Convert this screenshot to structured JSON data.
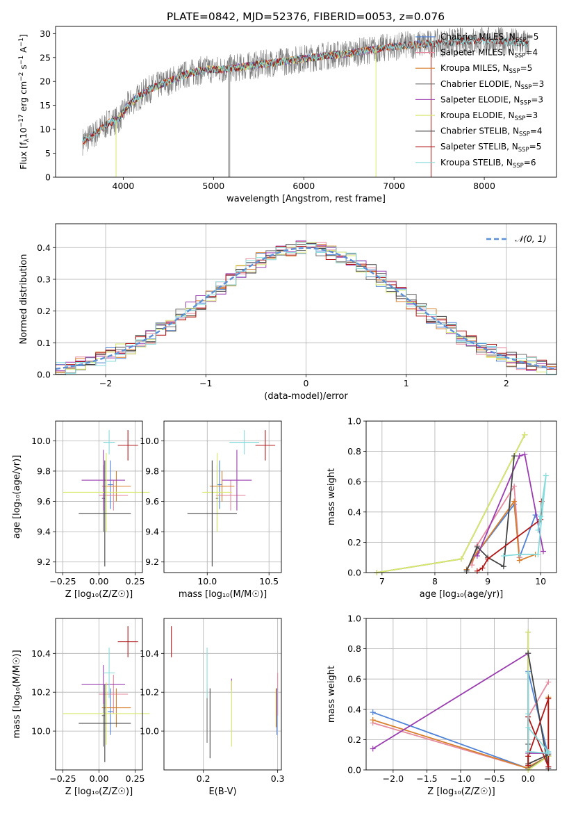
{
  "figure_title": "PLATE=0842, MJD=52376, FIBERID=0053, z=0.076",
  "colors": {
    "Chabrier MILES": "#4e82d8",
    "Salpeter MILES": "#e68a9e",
    "Kroupa MILES": "#d87f2c",
    "Chabrier ELODIE": "#6f6f6f",
    "Salpeter ELODIE": "#9a3cb0",
    "Kroupa ELODIE": "#d8e86a",
    "Chabrier STELIB": "#444444",
    "Salpeter STELIB": "#b01818",
    "Kroupa STELIB": "#86dcdc",
    "data": "#7a7a7a",
    "normal": "#5b8fd6"
  },
  "chart_data": [
    {
      "id": "spectrum",
      "type": "line",
      "title": "PLATE=0842, MJD=52376, FIBERID=0053, z=0.076",
      "xlabel": "wavelength [Angstrom, rest frame]",
      "ylabel_parts": [
        "Flux [f",
        "λ",
        "10",
        "−17",
        " erg cm",
        "−2",
        " s",
        "−1",
        " A",
        "−1",
        "]"
      ],
      "xlim": [
        3250,
        8800
      ],
      "ylim": [
        0,
        31.5
      ],
      "xticks": [
        4000,
        5000,
        6000,
        7000,
        8000
      ],
      "yticks": [
        0,
        5,
        10,
        15,
        20,
        25,
        30
      ],
      "grid": false,
      "legend_position": "right",
      "legend": [
        {
          "label": "Chabrier MILES, N",
          "sub": "SSP",
          "tail": "=5"
        },
        {
          "label": "Salpeter MILES, N",
          "sub": "SSP",
          "tail": "=4"
        },
        {
          "label": "Kroupa MILES, N",
          "sub": "SSP",
          "tail": "=5"
        },
        {
          "label": "Chabrier ELODIE, N",
          "sub": "SSP",
          "tail": "=3"
        },
        {
          "label": "Salpeter ELODIE, N",
          "sub": "SSP",
          "tail": "=3"
        },
        {
          "label": "Kroupa ELODIE, N",
          "sub": "SSP",
          "tail": "=3"
        },
        {
          "label": "Chabrier STELIB, N",
          "sub": "SSP",
          "tail": "=4"
        },
        {
          "label": "Salpeter STELIB, N",
          "sub": "SSP",
          "tail": "=5"
        },
        {
          "label": "Kroupa STELIB, N",
          "sub": "SSP",
          "tail": "=6"
        }
      ],
      "continuum": {
        "x": [
          3550,
          3650,
          3750,
          3850,
          3950,
          4050,
          4150,
          4300,
          4500,
          4700,
          4900,
          5100,
          5300,
          5500,
          5700,
          5900,
          6100,
          6300,
          6500,
          6700,
          6900,
          7100,
          7300,
          7500,
          7700,
          7900,
          8100,
          8300,
          8500
        ],
        "y": [
          7.5,
          8.5,
          10.0,
          11.5,
          12.0,
          15.0,
          16.5,
          18.5,
          20.0,
          21.5,
          22.5,
          22.5,
          23.0,
          23.5,
          24.0,
          24.5,
          25.0,
          25.5,
          25.8,
          26.5,
          27.0,
          27.5,
          27.8,
          28.0,
          28.3,
          28.5,
          28.5,
          28.3,
          28.0
        ]
      },
      "model_ranges": {
        "MILES": [
          3550,
          7410
        ],
        "ELODIE": [
          3900,
          6800
        ],
        "STELIB": [
          3550,
          8500
        ]
      }
    },
    {
      "id": "residuals",
      "type": "histogram",
      "xlabel": "(data-model)/error",
      "ylabel": "Normed distribution",
      "xlim": [
        -2.5,
        2.5
      ],
      "ylim": [
        0,
        0.475
      ],
      "xticks": [
        -2,
        -1,
        0,
        1,
        2
      ],
      "yticks": [
        0.0,
        0.1,
        0.2,
        0.3,
        0.4
      ],
      "grid": true,
      "legend": {
        "label": "𝒩(0, 1)",
        "position": "top-right"
      },
      "bin_width": 0.1
    },
    {
      "id": "age_vs_Z",
      "type": "errorbar",
      "xlabel": "Z [log₁₀(Z/Z☉)]",
      "ylabel": "age  [log₁₀(age/yr)]",
      "xlim": [
        -0.3,
        0.3
      ],
      "ylim": [
        9.13,
        10.13
      ],
      "xticks": [
        -0.25,
        0.0,
        0.25
      ],
      "xticklabels": [
        "−0.25",
        "0.00",
        "0.25"
      ],
      "yticks": [
        9.2,
        9.4,
        9.6,
        9.8,
        10.0
      ],
      "grid": true,
      "points": [
        {
          "model": "Chabrier MILES",
          "x": 0.08,
          "xerr": 0.02,
          "y": 9.71,
          "yerr": 0.16
        },
        {
          "model": "Salpeter MILES",
          "x": 0.1,
          "xerr": 0.1,
          "y": 9.64,
          "yerr": 0.1
        },
        {
          "model": "Kroupa MILES",
          "x": 0.12,
          "xerr": 0.1,
          "y": 9.7,
          "yerr": 0.1
        },
        {
          "model": "Chabrier ELODIE",
          "x": 0.03,
          "xerr": 0.01,
          "y": 9.62,
          "yerr": 0.22
        },
        {
          "model": "Salpeter ELODIE",
          "x": 0.03,
          "xerr": 0.15,
          "y": 9.74,
          "yerr": 0.2
        },
        {
          "model": "Kroupa ELODIE",
          "x": 0.05,
          "xerr": 0.3,
          "y": 9.66,
          "yerr": 0.26
        },
        {
          "model": "Chabrier STELIB",
          "x": 0.04,
          "xerr": 0.18,
          "y": 9.52,
          "yerr": 0.35
        },
        {
          "model": "Salpeter STELIB",
          "x": 0.2,
          "xerr": 0.07,
          "y": 9.97,
          "yerr": 0.1
        },
        {
          "model": "Kroupa STELIB",
          "x": 0.07,
          "xerr": 0.04,
          "y": 9.99,
          "yerr": 0.08
        }
      ]
    },
    {
      "id": "age_vs_mass",
      "type": "errorbar",
      "xlabel": "mass [log₁₀(M/M☉)]",
      "xlim": [
        9.65,
        10.6
      ],
      "ylim": [
        9.13,
        10.13
      ],
      "xticks": [
        10.0,
        10.5
      ],
      "xticklabels": [
        "10.0",
        "10.5"
      ],
      "yticks": [
        9.2,
        9.4,
        9.6,
        9.8,
        10.0
      ],
      "grid": true,
      "points": [
        {
          "model": "Chabrier MILES",
          "x": 10.1,
          "xerr": 0.02,
          "y": 9.71,
          "yerr": 0.16
        },
        {
          "model": "Salpeter MILES",
          "x": 10.19,
          "xerr": 0.12,
          "y": 9.64,
          "yerr": 0.1
        },
        {
          "model": "Kroupa MILES",
          "x": 10.12,
          "xerr": 0.1,
          "y": 9.7,
          "yerr": 0.1
        },
        {
          "model": "Chabrier ELODIE",
          "x": 10.08,
          "xerr": 0.01,
          "y": 9.62,
          "yerr": 0.22
        },
        {
          "model": "Salpeter ELODIE",
          "x": 10.24,
          "xerr": 0.12,
          "y": 9.74,
          "yerr": 0.2
        },
        {
          "model": "Kroupa ELODIE",
          "x": 10.08,
          "xerr": 0.12,
          "y": 9.66,
          "yerr": 0.26
        },
        {
          "model": "Chabrier STELIB",
          "x": 10.04,
          "xerr": 0.2,
          "y": 9.52,
          "yerr": 0.35
        },
        {
          "model": "Salpeter STELIB",
          "x": 10.47,
          "xerr": 0.08,
          "y": 9.97,
          "yerr": 0.1
        },
        {
          "model": "Kroupa STELIB",
          "x": 10.3,
          "xerr": 0.12,
          "y": 9.99,
          "yerr": 0.08
        }
      ]
    },
    {
      "id": "massweight_vs_age",
      "type": "line",
      "xlabel": "age  [log₁₀(age/yr)]",
      "ylabel": "mass weight",
      "xlim": [
        6.7,
        10.3
      ],
      "ylim": [
        0,
        1.0
      ],
      "xticks": [
        7,
        8,
        9,
        10
      ],
      "yticks": [
        0.0,
        0.2,
        0.4,
        0.6,
        0.8,
        1.0
      ],
      "grid": true,
      "series": [
        {
          "model": "Chabrier MILES",
          "x": [
            8.6,
            8.8,
            9.5,
            9.6,
            9.9
          ],
          "y": [
            0.02,
            0.13,
            0.45,
            0.1,
            0.38
          ]
        },
        {
          "model": "Salpeter MILES",
          "x": [
            8.7,
            8.8,
            9.5,
            9.6
          ],
          "y": [
            0.05,
            0.18,
            0.57,
            0.1
          ]
        },
        {
          "model": "Kroupa MILES",
          "x": [
            8.6,
            8.8,
            9.5,
            9.6,
            9.9
          ],
          "y": [
            0.02,
            0.13,
            0.47,
            0.08,
            0.12
          ]
        },
        {
          "model": "Chabrier ELODIE",
          "x": [
            6.9,
            8.5,
            9.7
          ],
          "y": [
            0.0,
            0.09,
            0.91
          ]
        },
        {
          "model": "Salpeter ELODIE",
          "x": [
            8.8,
            9.6,
            9.7,
            10.05
          ],
          "y": [
            0.11,
            0.77,
            0.78,
            0.14
          ]
        },
        {
          "model": "Kroupa ELODIE",
          "x": [
            6.9,
            8.5,
            9.7
          ],
          "y": [
            0.0,
            0.09,
            0.91
          ]
        },
        {
          "model": "Chabrier STELIB",
          "x": [
            8.6,
            8.8,
            9.0,
            9.3,
            9.5
          ],
          "y": [
            0.01,
            0.17,
            0.1,
            0.04,
            0.77
          ]
        },
        {
          "model": "Salpeter STELIB",
          "x": [
            8.8,
            8.9,
            9.0,
            10.0,
            10.02
          ],
          "y": [
            0.01,
            0.03,
            0.09,
            0.35,
            0.47
          ]
        },
        {
          "model": "Kroupa STELIB",
          "x": [
            9.3,
            9.6,
            9.95,
            10.1,
            9.95,
            10.0
          ],
          "y": [
            0.11,
            0.12,
            0.12,
            0.64,
            0.28,
            0.37
          ]
        }
      ]
    },
    {
      "id": "mass_vs_Z",
      "type": "errorbar",
      "xlabel": "Z [log₁₀(Z/Z☉)]",
      "ylabel": "mass [log₁₀(M/M☉)]",
      "xlim": [
        -0.3,
        0.3
      ],
      "ylim": [
        9.8,
        10.58
      ],
      "xticks": [
        -0.25,
        0.0,
        0.25
      ],
      "xticklabels": [
        "−0.25",
        "0.00",
        "0.25"
      ],
      "yticks": [
        10.0,
        10.2,
        10.4
      ],
      "grid": true,
      "points": [
        {
          "model": "Chabrier MILES",
          "x": 0.08,
          "xerr": 0.02,
          "y": 10.1,
          "yerr": 0.12
        },
        {
          "model": "Salpeter MILES",
          "x": 0.1,
          "xerr": 0.1,
          "y": 10.19,
          "yerr": 0.1
        },
        {
          "model": "Kroupa MILES",
          "x": 0.12,
          "xerr": 0.1,
          "y": 10.12,
          "yerr": 0.1
        },
        {
          "model": "Chabrier ELODIE",
          "x": 0.03,
          "xerr": 0.01,
          "y": 10.08,
          "yerr": 0.16
        },
        {
          "model": "Salpeter ELODIE",
          "x": 0.03,
          "xerr": 0.15,
          "y": 10.24,
          "yerr": 0.1
        },
        {
          "model": "Kroupa ELODIE",
          "x": 0.05,
          "xerr": 0.3,
          "y": 10.09,
          "yerr": 0.16
        },
        {
          "model": "Chabrier STELIB",
          "x": 0.04,
          "xerr": 0.18,
          "y": 10.04,
          "yerr": 0.2
        },
        {
          "model": "Salpeter STELIB",
          "x": 0.2,
          "xerr": 0.07,
          "y": 10.46,
          "yerr": 0.08
        },
        {
          "model": "Kroupa STELIB",
          "x": 0.07,
          "xerr": 0.04,
          "y": 10.3,
          "yerr": 0.13
        }
      ]
    },
    {
      "id": "mass_vs_ebv",
      "type": "errorbar",
      "xlabel": "E(B-V)",
      "xlim": [
        0.147,
        0.305
      ],
      "ylim": [
        9.8,
        10.58
      ],
      "xticks": [
        0.2,
        0.3
      ],
      "xticklabels": [
        "0.2",
        "0.3"
      ],
      "yticks": [
        10.0,
        10.2,
        10.4
      ],
      "grid": true,
      "points": [
        {
          "model": "Chabrier MILES",
          "x": 0.299,
          "xerr": 0.0,
          "y": 10.1,
          "yerr": 0.12
        },
        {
          "model": "Salpeter MILES",
          "x": 0.3,
          "xerr": 0.0,
          "y": 10.19,
          "yerr": 0.11
        },
        {
          "model": "Kroupa MILES",
          "x": 0.298,
          "xerr": 0.0,
          "y": 10.12,
          "yerr": 0.1
        },
        {
          "model": "Chabrier ELODIE",
          "x": 0.205,
          "xerr": 0.0,
          "y": 10.08,
          "yerr": 0.14
        },
        {
          "model": "Salpeter ELODIE",
          "x": 0.238,
          "xerr": 0.0,
          "y": 10.24,
          "yerr": 0.03
        },
        {
          "model": "Kroupa ELODIE",
          "x": 0.238,
          "xerr": 0.0,
          "y": 10.09,
          "yerr": 0.17
        },
        {
          "model": "Chabrier STELIB",
          "x": 0.209,
          "xerr": 0.0,
          "y": 10.04,
          "yerr": 0.18
        },
        {
          "model": "Salpeter STELIB",
          "x": 0.157,
          "xerr": 0.0,
          "y": 10.46,
          "yerr": 0.08
        },
        {
          "model": "Kroupa STELIB",
          "x": 0.205,
          "xerr": 0.0,
          "y": 10.3,
          "yerr": 0.13
        }
      ]
    },
    {
      "id": "massweight_vs_Z",
      "type": "line",
      "xlabel": "Z [log₁₀(Z/Z☉)]",
      "ylabel": "mass weight",
      "xlim": [
        -2.4,
        0.42
      ],
      "ylim": [
        0,
        1.0
      ],
      "xticks": [
        -2.0,
        -1.5,
        -1.0,
        -0.5,
        0.0
      ],
      "xticklabels": [
        "−2.0",
        "−1.5",
        "−1.0",
        "−0.5",
        "0.0"
      ],
      "yticks": [
        0.0,
        0.2,
        0.4,
        0.6,
        0.8,
        1.0
      ],
      "grid": true,
      "series": [
        {
          "model": "Chabrier MILES",
          "x": [
            -2.3,
            0.0,
            0.0,
            0.3,
            0.3
          ],
          "y": [
            0.38,
            0.01,
            0.65,
            0.09,
            0.02
          ]
        },
        {
          "model": "Salpeter MILES",
          "x": [
            -2.3,
            0.0,
            0.0,
            0.3
          ],
          "y": [
            0.31,
            0.01,
            0.35,
            0.58
          ]
        },
        {
          "model": "Kroupa MILES",
          "x": [
            -2.3,
            0.0,
            0.0,
            0.3,
            0.3
          ],
          "y": [
            0.33,
            0.01,
            0.02,
            0.09,
            0.48
          ]
        },
        {
          "model": "Chabrier ELODIE",
          "x": [
            0.0,
            0.0,
            0.3
          ],
          "y": [
            0.91,
            0.01,
            0.09
          ]
        },
        {
          "model": "Salpeter ELODIE",
          "x": [
            -2.3,
            0.0,
            0.0,
            0.3
          ],
          "y": [
            0.14,
            0.77,
            0.11,
            0.11
          ]
        },
        {
          "model": "Kroupa ELODIE",
          "x": [
            0.0,
            0.0,
            0.3
          ],
          "y": [
            0.91,
            0.0,
            0.09
          ]
        },
        {
          "model": "Chabrier STELIB",
          "x": [
            0.0,
            0.3,
            0.3,
            0.0,
            0.0
          ],
          "y": [
            0.77,
            0.01,
            0.1,
            0.04,
            0.17
          ]
        },
        {
          "model": "Salpeter STELIB",
          "x": [
            0.0,
            0.0,
            0.3,
            0.3,
            0.0
          ],
          "y": [
            0.03,
            0.35,
            0.02,
            0.47,
            0.09
          ]
        },
        {
          "model": "Kroupa STELIB",
          "x": [
            0.0,
            0.0,
            0.3,
            0.3,
            0.0,
            0.0
          ],
          "y": [
            0.64,
            0.12,
            0.11,
            0.12,
            0.28,
            0.37
          ]
        }
      ]
    }
  ]
}
